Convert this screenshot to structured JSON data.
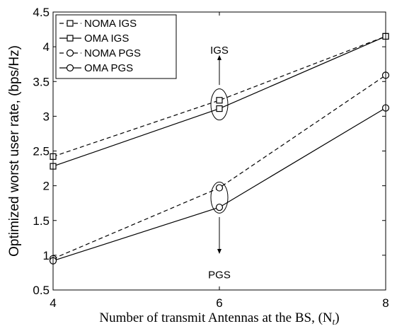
{
  "chart_data": {
    "type": "line",
    "x": [
      4,
      6,
      8
    ],
    "xlim": [
      4,
      8
    ],
    "ylim": [
      0.5,
      4.5
    ],
    "xticks": [
      "4",
      "6",
      "8"
    ],
    "yticks": [
      "0.5",
      "1",
      "1.5",
      "2",
      "2.5",
      "3",
      "3.5",
      "4",
      "4.5"
    ],
    "xlabel": "Number of transmit Antennas at the BS, (N",
    "xlabel_sub": "t",
    "xlabel_close": ")",
    "ylabel": "Optimized worst user rate, (bps/Hz)",
    "grid": false,
    "legend_position": "top-left",
    "series": [
      {
        "name": "NOMA IGS",
        "values": [
          2.42,
          3.23,
          4.15
        ],
        "line": "dashed",
        "marker": "square"
      },
      {
        "name": "OMA IGS",
        "values": [
          2.28,
          3.11,
          4.15
        ],
        "line": "solid",
        "marker": "square"
      },
      {
        "name": "NOMA PGS",
        "values": [
          0.95,
          1.97,
          3.59
        ],
        "line": "dashed",
        "marker": "circle"
      },
      {
        "name": "OMA PGS",
        "values": [
          0.92,
          1.69,
          3.12
        ],
        "line": "solid",
        "marker": "circle"
      }
    ],
    "annotations": [
      {
        "text": "IGS",
        "x": 6,
        "y": 3.95,
        "arrow_from": 3.45,
        "arrow_to": 3.85,
        "ellipse_center": 3.17
      },
      {
        "text": "PGS",
        "x": 6,
        "y": 0.72,
        "arrow_from": 1.55,
        "arrow_to": 1.05,
        "ellipse_center": 1.83
      }
    ],
    "colors": {
      "line": "#000000",
      "background": "#ffffff"
    }
  }
}
